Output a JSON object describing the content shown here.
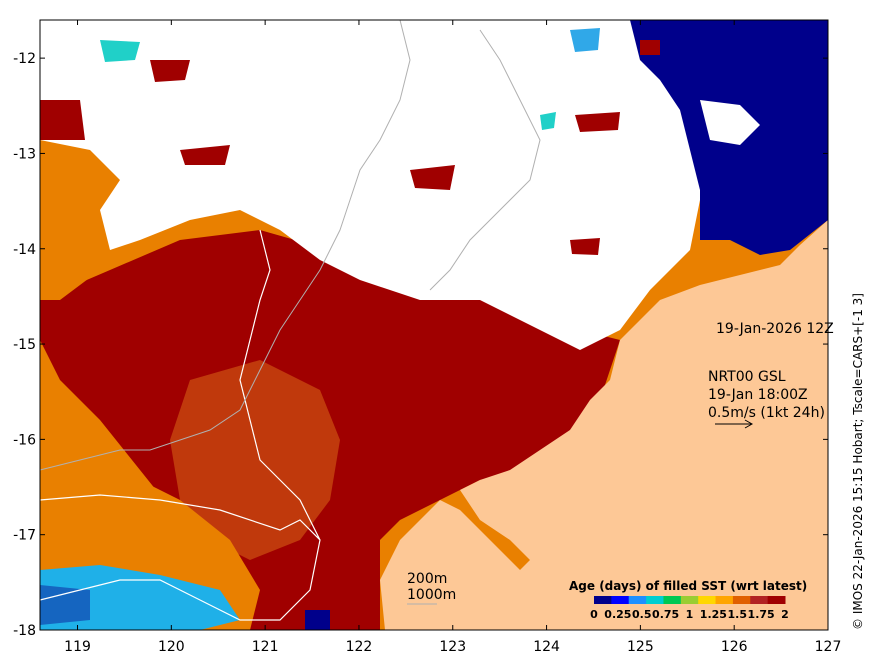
{
  "map": {
    "lon_ticks": [
      "119",
      "120",
      "121",
      "122",
      "123",
      "124",
      "125",
      "126",
      "127"
    ],
    "lat_ticks": [
      "-12",
      "-13",
      "-14",
      "-15",
      "-16",
      "-17",
      "-18"
    ],
    "lon_range": [
      118.6,
      127.0
    ],
    "lat_range": [
      -18.0,
      -11.6
    ]
  },
  "annotations": {
    "date_label": "19-Jan-2026 12Z",
    "current_source": "NRT00 GSL",
    "current_time": "19-Jan 18:00Z",
    "scale_label": "0.5m/s (1kt 24h)",
    "isobath_200": "200m",
    "isobath_1000": "1000m"
  },
  "colorbar": {
    "title": "Age (days) of filled SST (wrt latest)",
    "tick_labels": [
      "0",
      "0.25",
      "0.5",
      "0.75",
      "1",
      "1.25",
      "1.5",
      "1.75",
      "2"
    ],
    "colors": [
      "#00008b",
      "#0000ff",
      "#1e90ff",
      "#00ced1",
      "#00c853",
      "#9acd32",
      "#ffd700",
      "#ffa500",
      "#e06000",
      "#b22222",
      "#a00000"
    ]
  },
  "credit": "© IMOS 22-Jan-2026 15:15 Hobart; Tscale=CARS+[-1 3]",
  "colors": {
    "land": "#fdc896",
    "age_2": "#a00000",
    "age_1_75": "#c0390c",
    "age_1_5": "#e98000",
    "age_0_75": "#1fb0e8",
    "age_0": "#00008b",
    "cloud": "#ffffff"
  }
}
